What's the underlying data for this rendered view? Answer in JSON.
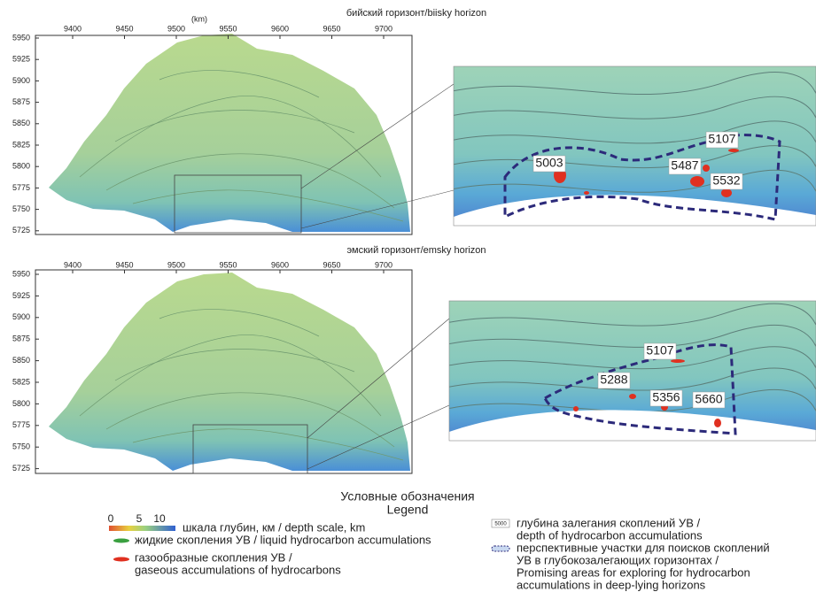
{
  "panels": [
    {
      "title": "бийский горизонт/biisky horizon",
      "x_unit": "(km)",
      "xticks": [
        9400,
        9450,
        9500,
        9550,
        9600,
        9650,
        9700
      ],
      "yticks": [
        5950,
        5925,
        5900,
        5875,
        5850,
        5825,
        5800,
        5775,
        5750,
        5725
      ],
      "depth_labels": [
        "5107",
        "5003",
        "5487",
        "5532"
      ]
    },
    {
      "title": "эмский горизонт/emsky horizon",
      "xticks": [
        9400,
        9450,
        9500,
        9550,
        9600,
        9650,
        9700
      ],
      "yticks": [
        5950,
        5925,
        5900,
        5875,
        5850,
        5825,
        5800,
        5775,
        5750,
        5725
      ],
      "depth_labels": [
        "5107",
        "5288",
        "5356",
        "5660"
      ]
    }
  ],
  "legend": {
    "title": "Условные обозначения",
    "subtitle": "Legend",
    "scale_ticks": [
      0,
      5,
      10
    ],
    "scale_label": "шкала глубин, км / depth scale, km",
    "liquid_label": "жидкие скопления УВ / liquid hydrocarbon accumulations",
    "gaseous_lines": [
      "газообразные скопления УВ /",
      "gaseous accumulations of hydrocarbons"
    ],
    "depth_icon": "5000",
    "depth_lines": [
      "глубина залегания скоплений  УВ /",
      "depth of hydrocarbon accumulations"
    ],
    "promising_lines": [
      "перспективные участки для поисков скоплений",
      "УВ в глубокозалегающих горизонтах /",
      "Promising areas for exploring for hydrocarbon",
      "accumulations in deep-lying horizons"
    ]
  }
}
